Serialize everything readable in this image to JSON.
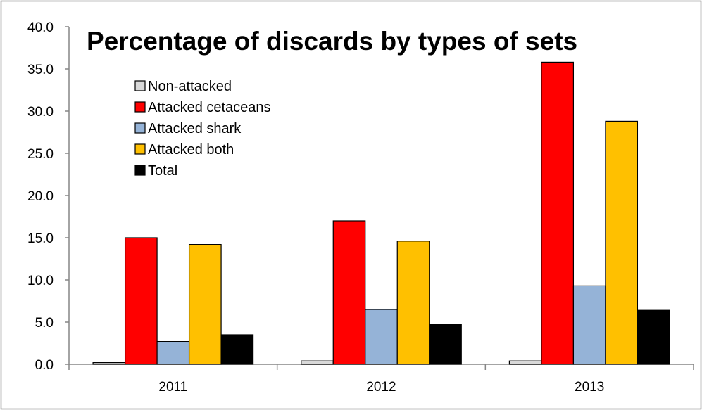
{
  "chart_data": {
    "type": "bar",
    "title": "Percentage of discards by types of sets",
    "xlabel": "",
    "ylabel": "",
    "categories": [
      "2011",
      "2012",
      "2013"
    ],
    "ylim": [
      0,
      40
    ],
    "yticks": [
      "0.0",
      "5.0",
      "10.0",
      "15.0",
      "20.0",
      "25.0",
      "30.0",
      "35.0",
      "40.0"
    ],
    "grid": false,
    "legend_position": "top-left",
    "series": [
      {
        "name": "Non-attacked",
        "color": "#d9d9d9",
        "values": [
          0.2,
          0.4,
          0.4
        ]
      },
      {
        "name": "Attacked cetaceans",
        "color": "#ff0000",
        "values": [
          15.0,
          17.0,
          35.8
        ]
      },
      {
        "name": "Attacked shark",
        "color": "#95b3d7",
        "values": [
          2.7,
          6.5,
          9.3
        ]
      },
      {
        "name": "Attacked both",
        "color": "#ffc000",
        "values": [
          14.2,
          14.6,
          28.8
        ]
      },
      {
        "name": "Total",
        "color": "#000000",
        "values": [
          3.5,
          4.7,
          6.4
        ]
      }
    ]
  }
}
